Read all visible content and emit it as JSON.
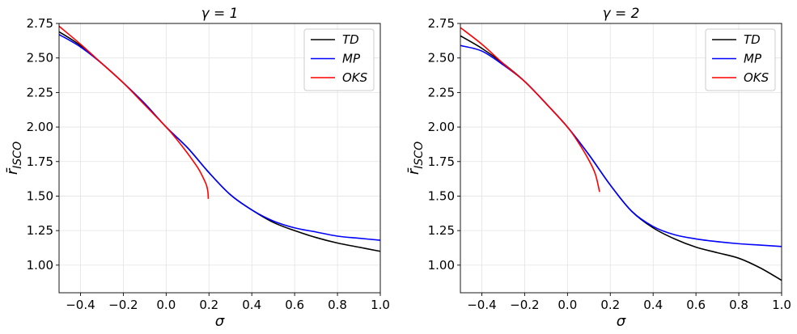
{
  "chart_data": [
    {
      "type": "line",
      "title": "γ = 1",
      "xlabel": "σ",
      "ylabel": "r̄ISCO",
      "xlim": [
        -0.5,
        1.0
      ],
      "ylim": [
        0.8,
        2.75
      ],
      "xticks": [
        -0.4,
        -0.2,
        0.0,
        0.2,
        0.4,
        0.6,
        0.8,
        1.0
      ],
      "xtick_labels": [
        "−0.4",
        "−0.2",
        "0.0",
        "0.2",
        "0.4",
        "0.6",
        "0.8",
        "1.0"
      ],
      "yticks": [
        1.0,
        1.25,
        1.5,
        1.75,
        2.0,
        2.25,
        2.5,
        2.75
      ],
      "ytick_labels": [
        "1.00",
        "1.25",
        "1.50",
        "1.75",
        "2.00",
        "2.25",
        "2.50",
        "2.75"
      ],
      "grid": true,
      "legend_position": "top-right",
      "series": [
        {
          "name": "TD",
          "color": "#000000",
          "x": [
            -0.5,
            -0.4,
            -0.3,
            -0.2,
            -0.1,
            0.0,
            0.1,
            0.2,
            0.3,
            0.4,
            0.5,
            0.6,
            0.7,
            0.8,
            0.9,
            1.0
          ],
          "y": [
            2.69,
            2.59,
            2.46,
            2.32,
            2.17,
            2.0,
            1.85,
            1.67,
            1.51,
            1.4,
            1.31,
            1.25,
            1.2,
            1.16,
            1.13,
            1.1
          ]
        },
        {
          "name": "MP",
          "color": "#0000ff",
          "x": [
            -0.5,
            -0.4,
            -0.3,
            -0.2,
            -0.1,
            0.0,
            0.1,
            0.2,
            0.3,
            0.4,
            0.5,
            0.6,
            0.7,
            0.8,
            0.9,
            1.0
          ],
          "y": [
            2.67,
            2.58,
            2.46,
            2.32,
            2.17,
            2.0,
            1.85,
            1.67,
            1.51,
            1.4,
            1.32,
            1.27,
            1.24,
            1.21,
            1.195,
            1.18
          ]
        },
        {
          "name": "OKS",
          "color": "#ff0000",
          "x": [
            -0.5,
            -0.4,
            -0.3,
            -0.2,
            -0.1,
            0.0,
            0.05,
            0.1,
            0.15,
            0.18,
            0.19,
            0.195,
            0.197
          ],
          "y": [
            2.73,
            2.6,
            2.46,
            2.32,
            2.16,
            2.0,
            1.91,
            1.81,
            1.7,
            1.61,
            1.57,
            1.53,
            1.48
          ]
        }
      ]
    },
    {
      "type": "line",
      "title": "γ = 2",
      "xlabel": "σ",
      "ylabel": "r̄ISCO",
      "xlim": [
        -0.5,
        1.0
      ],
      "ylim": [
        0.8,
        2.75
      ],
      "xticks": [
        -0.4,
        -0.2,
        0.0,
        0.2,
        0.4,
        0.6,
        0.8,
        1.0
      ],
      "xtick_labels": [
        "−0.4",
        "−0.2",
        "0.0",
        "0.2",
        "0.4",
        "0.6",
        "0.8",
        "1.0"
      ],
      "yticks": [
        1.0,
        1.25,
        1.5,
        1.75,
        2.0,
        2.25,
        2.5,
        2.75
      ],
      "ytick_labels": [
        "1.00",
        "1.25",
        "1.50",
        "1.75",
        "2.00",
        "2.25",
        "2.50",
        "2.75"
      ],
      "grid": true,
      "legend_position": "top-right",
      "series": [
        {
          "name": "TD",
          "color": "#000000",
          "x": [
            -0.5,
            -0.4,
            -0.3,
            -0.2,
            -0.1,
            0.0,
            0.1,
            0.2,
            0.3,
            0.4,
            0.5,
            0.6,
            0.7,
            0.8,
            0.9,
            1.0
          ],
          "y": [
            2.66,
            2.57,
            2.46,
            2.33,
            2.17,
            2.0,
            1.8,
            1.58,
            1.39,
            1.27,
            1.19,
            1.13,
            1.09,
            1.05,
            0.98,
            0.89
          ]
        },
        {
          "name": "MP",
          "color": "#0000ff",
          "x": [
            -0.5,
            -0.4,
            -0.3,
            -0.2,
            -0.1,
            0.0,
            0.1,
            0.2,
            0.3,
            0.4,
            0.5,
            0.6,
            0.7,
            0.8,
            0.9,
            1.0
          ],
          "y": [
            2.59,
            2.55,
            2.45,
            2.33,
            2.17,
            2.0,
            1.8,
            1.58,
            1.39,
            1.28,
            1.22,
            1.19,
            1.17,
            1.155,
            1.145,
            1.135
          ]
        },
        {
          "name": "OKS",
          "color": "#ff0000",
          "x": [
            -0.5,
            -0.4,
            -0.3,
            -0.2,
            -0.1,
            0.0,
            0.05,
            0.1,
            0.13,
            0.15
          ],
          "y": [
            2.72,
            2.6,
            2.46,
            2.33,
            2.17,
            2.0,
            1.89,
            1.76,
            1.66,
            1.53
          ]
        }
      ]
    }
  ]
}
